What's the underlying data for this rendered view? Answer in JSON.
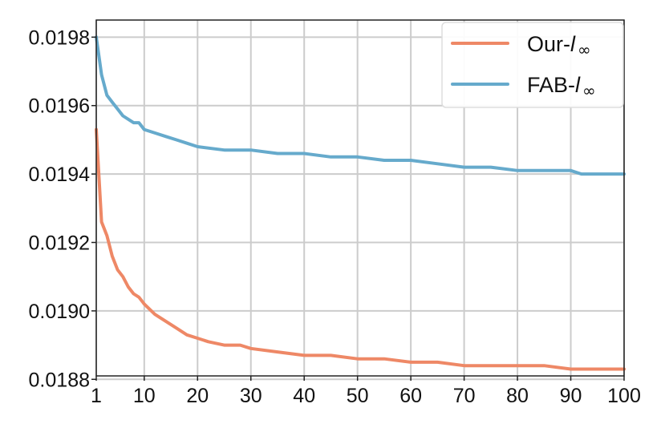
{
  "chart_data": {
    "type": "line",
    "title": "",
    "xlabel": "",
    "ylabel": "",
    "xlim": [
      1,
      100
    ],
    "ylim": [
      0.01881,
      0.01985
    ],
    "grid": true,
    "legend_position": "top-right",
    "x_ticks": [
      1,
      10,
      20,
      30,
      40,
      50,
      60,
      70,
      80,
      90,
      100
    ],
    "y_ticks": [
      0.0188,
      0.019,
      0.0192,
      0.0194,
      0.0196,
      0.0198
    ],
    "x_tick_labels": [
      "1",
      "10",
      "20",
      "30",
      "40",
      "50",
      "60",
      "70",
      "80",
      "90",
      "100"
    ],
    "y_tick_labels": [
      "0.0188",
      "0.0190",
      "0.0192",
      "0.0194",
      "0.0196",
      "0.0198"
    ],
    "series": [
      {
        "name": "Our-l∞",
        "name_base": "Our-",
        "name_italic": "l",
        "name_sub": "∞",
        "color": "#EE8866",
        "x": [
          1,
          2,
          3,
          4,
          5,
          6,
          7,
          8,
          9,
          10,
          12,
          14,
          16,
          18,
          20,
          22,
          25,
          28,
          30,
          35,
          40,
          45,
          50,
          55,
          60,
          62,
          65,
          70,
          75,
          80,
          85,
          90,
          95,
          100
        ],
        "values": [
          0.01953,
          0.01926,
          0.01922,
          0.01916,
          0.01912,
          0.0191,
          0.01907,
          0.01905,
          0.01904,
          0.01902,
          0.01899,
          0.01897,
          0.01895,
          0.01893,
          0.01892,
          0.01891,
          0.0189,
          0.0189,
          0.01889,
          0.01888,
          0.01887,
          0.01887,
          0.01886,
          0.01886,
          0.01885,
          0.01885,
          0.01885,
          0.01884,
          0.01884,
          0.01884,
          0.01884,
          0.01883,
          0.01883,
          0.01883
        ]
      },
      {
        "name": "FAB-l∞",
        "name_base": "FAB-",
        "name_italic": "l",
        "name_sub": "∞",
        "color": "#66AACC",
        "x": [
          1,
          2,
          3,
          4,
          5,
          6,
          7,
          8,
          9,
          10,
          12,
          14,
          16,
          18,
          20,
          25,
          30,
          35,
          40,
          45,
          50,
          55,
          60,
          65,
          70,
          75,
          80,
          85,
          90,
          92,
          95,
          100
        ],
        "values": [
          0.0198,
          0.01969,
          0.01963,
          0.01961,
          0.01959,
          0.01957,
          0.01956,
          0.01955,
          0.01955,
          0.01953,
          0.01952,
          0.01951,
          0.0195,
          0.01949,
          0.01948,
          0.01947,
          0.01947,
          0.01946,
          0.01946,
          0.01945,
          0.01945,
          0.01944,
          0.01944,
          0.01943,
          0.01942,
          0.01942,
          0.01941,
          0.01941,
          0.01941,
          0.0194,
          0.0194,
          0.0194
        ]
      }
    ]
  }
}
